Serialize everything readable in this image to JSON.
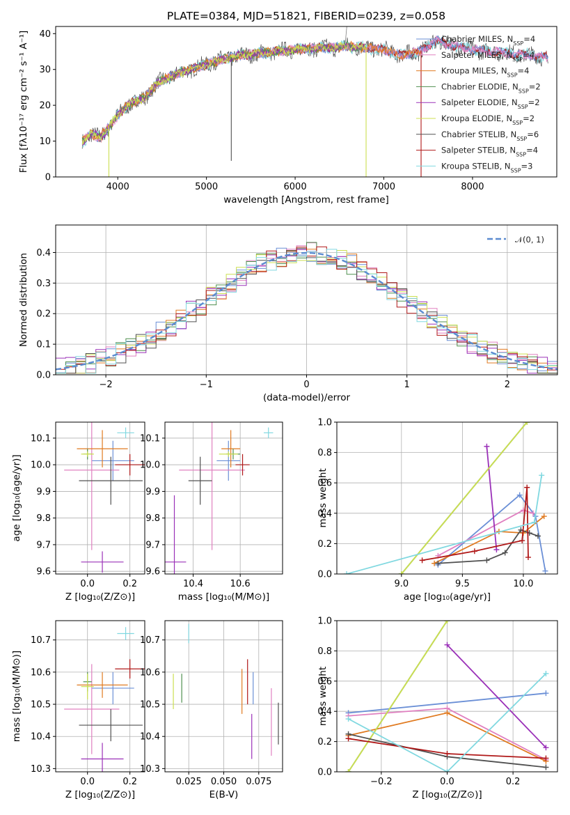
{
  "colors": {
    "Chabrier MILES": "#6a8fd6",
    "Salpeter MILES": "#e080c0",
    "Kroupa MILES": "#e07a20",
    "Chabrier ELODIE": "#4f8f4f",
    "Salpeter ELODIE": "#9a30b8",
    "Kroupa ELODIE": "#ccdf50",
    "Chabrier STELIB": "#505050",
    "Salpeter STELIB": "#b01818",
    "Kroupa STELIB": "#80d8e0",
    "gaussian": "#5b8bd0"
  },
  "chart_data": [
    {
      "type": "line",
      "title": "PLATE=0384, MJD=51821, FIBERID=0239, z=0.058",
      "xlabel": "wavelength [Angstrom, rest frame]",
      "ylabel": "Flux [fλ10⁻¹⁷ erg cm⁻² s⁻¹ A⁻¹]",
      "xlim": [
        3300,
        8950
      ],
      "ylim": [
        0,
        42
      ],
      "xticks": [
        "4000",
        "5000",
        "6000",
        "7000",
        "8000"
      ],
      "yticks": [
        "0",
        "10",
        "20",
        "30",
        "40"
      ],
      "continuum": {
        "x": [
          3600,
          3700,
          3800,
          3900,
          4000,
          4100,
          4200,
          4300,
          4400,
          4500,
          4600,
          4700,
          4800,
          4900,
          5000,
          5200,
          5400,
          5600,
          5800,
          6000,
          6200,
          6400,
          6600,
          6800,
          7000,
          7200,
          7400,
          7600,
          7800,
          8000,
          8200,
          8400,
          8600,
          8800
        ],
        "y": [
          10,
          12,
          11,
          14,
          17,
          20,
          21,
          22,
          25,
          27,
          28,
          29,
          30,
          30.5,
          31.5,
          33,
          34,
          34.5,
          35,
          35.5,
          36,
          36,
          36.5,
          36,
          35.5,
          34,
          35,
          38,
          36.5,
          35.5,
          35,
          34.5,
          34,
          33.5
        ]
      },
      "spikes_x": [
        3900,
        5280,
        6560,
        6800,
        7420
      ],
      "legend_position": "upper right",
      "legend": [
        "Chabrier MILES, N_SSP=4",
        "Salpeter MILES, N_SSP=4",
        "Kroupa MILES, N_SSP=4",
        "Chabrier ELODIE, N_SSP=2",
        "Salpeter ELODIE, N_SSP=2",
        "Kroupa ELODIE, N_SSP=2",
        "Chabrier STELIB, N_SSP=6",
        "Salpeter STELIB, N_SSP=4",
        "Kroupa STELIB, N_SSP=3"
      ]
    },
    {
      "type": "histogram",
      "xlabel": "(data-model)/error",
      "ylabel": "Normed distribution",
      "xlim": [
        -2.5,
        2.5
      ],
      "ylim": [
        0,
        0.49
      ],
      "xticks": [
        "−2",
        "−1",
        "0",
        "1",
        "2"
      ],
      "yticks": [
        "0.0",
        "0.1",
        "0.2",
        "0.3",
        "0.4"
      ],
      "legend": "𝒩(0, 1)",
      "legend_position": "upper right",
      "bin_width": 0.1,
      "grid": true
    },
    {
      "type": "scatter",
      "xlabel": "Z [log₁₀(Z/Z⊙)]",
      "ylabel": "age  [log₁₀(age/yr)]",
      "xlim": [
        -0.15,
        0.27
      ],
      "ylim": [
        9.59,
        10.16
      ],
      "xticks": [
        "0.0",
        "0.2"
      ],
      "yticks": [
        "9.6",
        "9.7",
        "9.8",
        "9.9",
        "10.0",
        "10.1"
      ],
      "points": [
        {
          "model": "Chabrier MILES",
          "x": 0.12,
          "y": 10.015,
          "xerr": 0.1,
          "yerr": 0.075
        },
        {
          "model": "Salpeter MILES",
          "x": 0.02,
          "y": 9.98,
          "xerr": 0.13,
          "yerr": 0.3
        },
        {
          "model": "Kroupa MILES",
          "x": 0.07,
          "y": 10.06,
          "xerr": 0.12,
          "yerr": 0.07
        },
        {
          "model": "Chabrier ELODIE",
          "x": 0.0,
          "y": 10.04,
          "xerr": 0.02,
          "yerr": 0.02
        },
        {
          "model": "Salpeter ELODIE",
          "x": 0.07,
          "y": 9.635,
          "xerr": 0.1,
          "yerr": 0.04
        },
        {
          "model": "Kroupa ELODIE",
          "x": 0.0,
          "y": 10.04,
          "xerr": 0.03,
          "yerr": 0.01
        },
        {
          "model": "Chabrier STELIB",
          "x": 0.11,
          "y": 9.94,
          "xerr": 0.15,
          "yerr": 0.09
        },
        {
          "model": "Salpeter STELIB",
          "x": 0.2,
          "y": 10.0,
          "xerr": 0.07,
          "yerr": 0.04
        },
        {
          "model": "Kroupa STELIB",
          "x": 0.18,
          "y": 10.12,
          "xerr": 0.04,
          "yerr": 0.02
        }
      ]
    },
    {
      "type": "scatter",
      "xlabel": "mass [log₁₀(M/M⊙)]",
      "ylabel": "",
      "xlim": [
        10.28,
        10.78
      ],
      "ylim": [
        9.59,
        10.16
      ],
      "xticks": [
        "10.4",
        "10.6"
      ],
      "yticks": [
        "9.6",
        "9.7",
        "9.8",
        "9.9",
        "10.0",
        "10.1"
      ],
      "points": [
        {
          "model": "Chabrier MILES",
          "x": 10.55,
          "y": 10.015,
          "xerr": 0.05,
          "yerr": 0.075
        },
        {
          "model": "Salpeter MILES",
          "x": 10.48,
          "y": 9.98,
          "xerr": 0.14,
          "yerr": 0.3
        },
        {
          "model": "Kroupa MILES",
          "x": 10.56,
          "y": 10.06,
          "xerr": 0.04,
          "yerr": 0.07
        },
        {
          "model": "Chabrier ELODIE",
          "x": 10.57,
          "y": 10.04,
          "xerr": 0.03,
          "yerr": 0.02
        },
        {
          "model": "Salpeter ELODIE",
          "x": 10.32,
          "y": 9.635,
          "xerr": 0.05,
          "yerr": 0.25
        },
        {
          "model": "Kroupa ELODIE",
          "x": 10.55,
          "y": 10.04,
          "xerr": 0.04,
          "yerr": 0.01
        },
        {
          "model": "Chabrier STELIB",
          "x": 10.43,
          "y": 9.94,
          "xerr": 0.05,
          "yerr": 0.09
        },
        {
          "model": "Salpeter STELIB",
          "x": 10.61,
          "y": 10.0,
          "xerr": 0.03,
          "yerr": 0.04
        },
        {
          "model": "Kroupa STELIB",
          "x": 10.72,
          "y": 10.12,
          "xerr": 0.02,
          "yerr": 0.02
        }
      ]
    },
    {
      "type": "line",
      "xlabel": "age  [log₁₀(age/yr)]",
      "ylabel": "mass weight",
      "xlim": [
        8.47,
        10.28
      ],
      "ylim": [
        0,
        1.0
      ],
      "xticks": [
        "9.0",
        "9.5",
        "10.0"
      ],
      "yticks": [
        "0.0",
        "0.2",
        "0.4",
        "0.6",
        "0.8",
        "1.0"
      ],
      "series": [
        {
          "model": "Chabrier MILES",
          "x": [
            9.3,
            9.97,
            10.1,
            10.18
          ],
          "y": [
            0.06,
            0.52,
            0.38,
            0.02
          ]
        },
        {
          "model": "Salpeter MILES",
          "x": [
            9.3,
            10.0,
            10.08
          ],
          "y": [
            0.12,
            0.42,
            0.4
          ]
        },
        {
          "model": "Kroupa MILES",
          "x": [
            9.27,
            9.8,
            10.0,
            10.17
          ],
          "y": [
            0.07,
            0.28,
            0.27,
            0.38
          ]
        },
        {
          "model": "Chabrier ELODIE",
          "x": [
            9.0,
            10.03
          ],
          "y": [
            0.0,
            1.0
          ]
        },
        {
          "model": "Salpeter ELODIE",
          "x": [
            9.7,
            9.78
          ],
          "y": [
            0.84,
            0.16
          ]
        },
        {
          "model": "Kroupa ELODIE",
          "x": [
            9.0,
            10.03
          ],
          "y": [
            0.0,
            1.0
          ]
        },
        {
          "model": "Chabrier STELIB",
          "x": [
            9.3,
            9.7,
            9.85,
            9.98,
            10.05,
            10.12
          ],
          "y": [
            0.07,
            0.09,
            0.14,
            0.29,
            0.27,
            0.25
          ]
        },
        {
          "model": "Salpeter STELIB",
          "x": [
            9.17,
            9.6,
            9.99,
            10.03,
            10.04
          ],
          "y": [
            0.09,
            0.15,
            0.22,
            0.57,
            0.11
          ]
        },
        {
          "model": "Kroupa STELIB",
          "x": [
            8.55,
            10.09,
            10.15
          ],
          "y": [
            0.0,
            0.34,
            0.65
          ]
        }
      ]
    },
    {
      "type": "scatter",
      "xlabel": "Z [log₁₀(Z/Z⊙)]",
      "ylabel": "mass [log₁₀(M/M⊙)]",
      "xlim": [
        -0.15,
        0.27
      ],
      "ylim": [
        10.29,
        10.76
      ],
      "xticks": [
        "0.0",
        "0.2"
      ],
      "yticks": [
        "10.3",
        "10.4",
        "10.5",
        "10.6",
        "10.7"
      ],
      "points": [
        {
          "model": "Chabrier MILES",
          "x": 0.12,
          "y": 10.55,
          "xerr": 0.1,
          "yerr": 0.05
        },
        {
          "model": "Salpeter MILES",
          "x": 0.02,
          "y": 10.485,
          "xerr": 0.13,
          "yerr": 0.14
        },
        {
          "model": "Kroupa MILES",
          "x": 0.07,
          "y": 10.56,
          "xerr": 0.12,
          "yerr": 0.04
        },
        {
          "model": "Chabrier ELODIE",
          "x": 0.0,
          "y": 10.57,
          "xerr": 0.02,
          "yerr": 0.03
        },
        {
          "model": "Salpeter ELODIE",
          "x": 0.07,
          "y": 10.33,
          "xerr": 0.1,
          "yerr": 0.05
        },
        {
          "model": "Kroupa ELODIE",
          "x": 0.0,
          "y": 10.555,
          "xerr": 0.03,
          "yerr": 0.04
        },
        {
          "model": "Chabrier STELIB",
          "x": 0.11,
          "y": 10.435,
          "xerr": 0.15,
          "yerr": 0.05
        },
        {
          "model": "Salpeter STELIB",
          "x": 0.2,
          "y": 10.61,
          "xerr": 0.07,
          "yerr": 0.03
        },
        {
          "model": "Kroupa STELIB",
          "x": 0.18,
          "y": 10.72,
          "xerr": 0.04,
          "yerr": 0.02
        }
      ]
    },
    {
      "type": "scatter",
      "xlabel": "E(B-V)",
      "ylabel": "",
      "xlim": [
        0.008,
        0.092
      ],
      "ylim": [
        10.29,
        10.76
      ],
      "xticks": [
        "0.025",
        "0.050",
        "0.075"
      ],
      "yticks": [
        "10.3",
        "10.4",
        "10.5",
        "10.6",
        "10.7"
      ],
      "points": [
        {
          "model": "Chabrier MILES",
          "x": 0.071,
          "y": 10.55,
          "xerr": 0.0,
          "yerr": 0.05
        },
        {
          "model": "Salpeter MILES",
          "x": 0.084,
          "y": 10.445,
          "xerr": 0.0,
          "yerr": 0.105
        },
        {
          "model": "Kroupa MILES",
          "x": 0.063,
          "y": 10.54,
          "xerr": 0.0,
          "yerr": 0.07
        },
        {
          "model": "Chabrier ELODIE",
          "x": 0.02,
          "y": 10.55,
          "xerr": 0.0,
          "yerr": 0.045
        },
        {
          "model": "Salpeter ELODIE",
          "x": 0.07,
          "y": 10.4,
          "xerr": 0.0,
          "yerr": 0.07
        },
        {
          "model": "Kroupa ELODIE",
          "x": 0.014,
          "y": 10.54,
          "xerr": 0.0,
          "yerr": 0.055
        },
        {
          "model": "Chabrier STELIB",
          "x": 0.089,
          "y": 10.44,
          "xerr": 0.0,
          "yerr": 0.065
        },
        {
          "model": "Salpeter STELIB",
          "x": 0.067,
          "y": 10.57,
          "xerr": 0.0,
          "yerr": 0.07
        },
        {
          "model": "Kroupa STELIB",
          "x": 0.025,
          "y": 10.72,
          "xerr": 0.0,
          "yerr": 0.03
        }
      ]
    },
    {
      "type": "line",
      "xlabel": "Z [log₁₀(Z/Z⊙)]",
      "ylabel": "mass weight",
      "xlim": [
        -0.335,
        0.335
      ],
      "ylim": [
        0,
        1.0
      ],
      "xticks": [
        "−0.2",
        "0.0",
        "0.2"
      ],
      "yticks": [
        "0.0",
        "0.2",
        "0.4",
        "0.6",
        "0.8",
        "1.0"
      ],
      "series": [
        {
          "model": "Chabrier MILES",
          "x": [
            -0.3,
            0.3
          ],
          "y": [
            0.39,
            0.52
          ]
        },
        {
          "model": "Salpeter MILES",
          "x": [
            -0.3,
            0.0,
            0.3
          ],
          "y": [
            0.37,
            0.42,
            0.08
          ]
        },
        {
          "model": "Kroupa MILES",
          "x": [
            -0.3,
            0.0,
            0.3
          ],
          "y": [
            0.24,
            0.39,
            0.07
          ]
        },
        {
          "model": "Chabrier ELODIE",
          "x": [
            -0.3,
            0.0
          ],
          "y": [
            0.0,
            1.0
          ]
        },
        {
          "model": "Salpeter ELODIE",
          "x": [
            0.0,
            0.3
          ],
          "y": [
            0.84,
            0.16
          ]
        },
        {
          "model": "Kroupa ELODIE",
          "x": [
            -0.3,
            0.0
          ],
          "y": [
            0.0,
            1.0
          ]
        },
        {
          "model": "Chabrier STELIB",
          "x": [
            -0.3,
            0.0,
            0.3
          ],
          "y": [
            0.25,
            0.1,
            0.03
          ]
        },
        {
          "model": "Salpeter STELIB",
          "x": [
            -0.3,
            0.0,
            0.3
          ],
          "y": [
            0.22,
            0.12,
            0.09
          ]
        },
        {
          "model": "Kroupa STELIB",
          "x": [
            -0.3,
            0.0,
            0.3
          ],
          "y": [
            0.35,
            0.0,
            0.65
          ]
        }
      ]
    }
  ]
}
